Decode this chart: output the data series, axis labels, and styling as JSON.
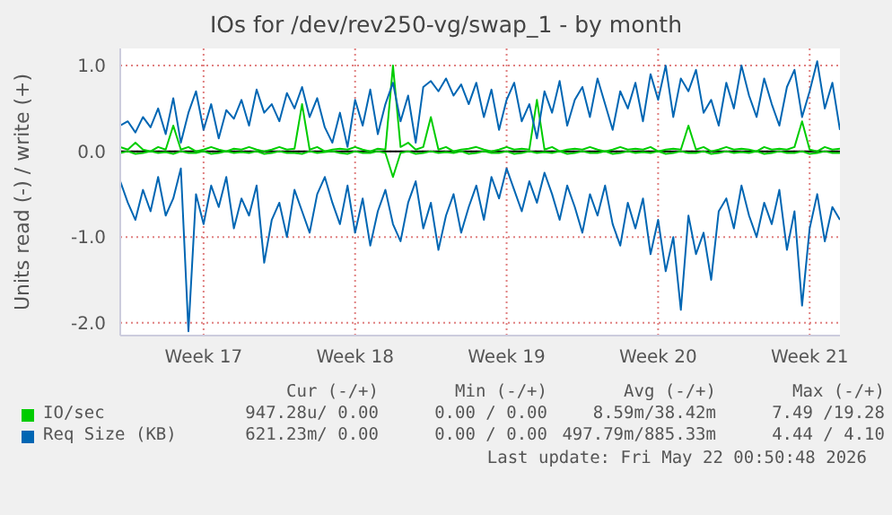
{
  "chart_data": {
    "type": "line",
    "title": "IOs for /dev/rev250-vg/swap_1 - by month",
    "ylabel": "Units read (-) / write (+)",
    "categories": [
      null,
      null,
      null,
      null,
      null,
      null,
      null,
      null,
      null,
      null,
      null,
      "Week 17",
      null,
      null,
      null,
      null,
      null,
      null,
      null,
      null,
      null,
      null,
      null,
      null,
      null,
      null,
      null,
      null,
      null,
      null,
      null,
      "Week 18",
      null,
      null,
      null,
      null,
      null,
      null,
      null,
      null,
      null,
      null,
      null,
      null,
      null,
      null,
      null,
      null,
      null,
      null,
      null,
      "Week 19",
      null,
      null,
      null,
      null,
      null,
      null,
      null,
      null,
      null,
      null,
      null,
      null,
      null,
      null,
      null,
      null,
      null,
      null,
      null,
      "Week 20",
      null,
      null,
      null,
      null,
      null,
      null,
      null,
      null,
      null,
      null,
      null,
      null,
      null,
      null,
      null,
      null,
      null,
      null,
      null,
      "Week 21",
      null,
      null,
      null,
      null
    ],
    "series": [
      {
        "name": "IO/sec",
        "color": "#00cc00",
        "values": [
          0.05,
          0.02,
          0.1,
          0.02,
          0.0,
          0.05,
          0.02,
          0.3,
          0.02,
          0.05,
          0.0,
          0.02,
          0.05,
          0.02,
          0.0,
          0.03,
          0.02,
          0.05,
          0.02,
          0.0,
          0.02,
          0.05,
          0.02,
          0.03,
          0.55,
          0.02,
          0.05,
          0.0,
          0.02,
          0.03,
          0.02,
          0.05,
          0.02,
          0.0,
          0.03,
          0.02,
          1.0,
          0.05,
          0.1,
          0.02,
          0.05,
          0.4,
          0.02,
          0.05,
          0.0,
          0.02,
          0.03,
          0.05,
          0.02,
          0.0,
          0.02,
          0.05,
          0.02,
          0.03,
          0.02,
          0.6,
          0.02,
          0.05,
          0.0,
          0.02,
          0.03,
          0.02,
          0.05,
          0.02,
          0.0,
          0.02,
          0.05,
          0.02,
          0.03,
          0.02,
          0.05,
          0.0,
          0.02,
          0.03,
          0.02,
          0.3,
          0.02,
          0.05,
          0.0,
          0.02,
          0.05,
          0.02,
          0.03,
          0.02,
          0.0,
          0.05,
          0.02,
          0.03,
          0.02,
          0.05,
          0.35,
          0.02,
          0.0,
          0.05,
          0.02,
          0.03
        ]
      },
      {
        "color": "#00cc00",
        "values": [
          -0.02,
          0.0,
          -0.03,
          -0.02,
          0.0,
          -0.02,
          -0.01,
          -0.03,
          0.0,
          -0.02,
          -0.02,
          0.0,
          -0.03,
          -0.02,
          0.0,
          -0.02,
          -0.01,
          -0.02,
          0.0,
          -0.03,
          -0.02,
          0.0,
          -0.02,
          -0.02,
          -0.03,
          0.0,
          -0.02,
          -0.01,
          0.0,
          -0.02,
          -0.03,
          0.0,
          -0.02,
          -0.02,
          0.0,
          -0.02,
          -0.3,
          -0.02,
          0.0,
          -0.03,
          -0.02,
          0.0,
          -0.02,
          -0.01,
          -0.02,
          0.0,
          -0.03,
          -0.02,
          0.0,
          -0.02,
          -0.02,
          0.0,
          -0.03,
          -0.02,
          0.0,
          -0.02,
          -0.01,
          -0.02,
          0.0,
          -0.03,
          -0.02,
          0.0,
          -0.02,
          -0.02,
          0.0,
          -0.03,
          -0.02,
          0.0,
          -0.02,
          -0.01,
          -0.02,
          0.0,
          -0.03,
          -0.02,
          0.0,
          -0.02,
          -0.02,
          0.0,
          -0.03,
          -0.02,
          0.0,
          -0.02,
          -0.01,
          -0.02,
          0.0,
          -0.03,
          -0.02,
          0.0,
          -0.02,
          -0.02,
          0.0,
          -0.03,
          -0.02,
          0.0,
          -0.02,
          -0.02
        ]
      },
      {
        "name": "Req Size (KB)",
        "color": "#0066b3",
        "values": [
          0.3,
          0.35,
          0.22,
          0.4,
          0.28,
          0.5,
          0.2,
          0.62,
          0.1,
          0.45,
          0.7,
          0.25,
          0.55,
          0.15,
          0.48,
          0.38,
          0.6,
          0.3,
          0.72,
          0.45,
          0.55,
          0.35,
          0.68,
          0.5,
          0.75,
          0.4,
          0.62,
          0.28,
          0.1,
          0.45,
          0.05,
          0.6,
          0.3,
          0.72,
          0.2,
          0.55,
          0.8,
          0.35,
          0.65,
          0.1,
          0.75,
          0.82,
          0.7,
          0.85,
          0.65,
          0.78,
          0.55,
          0.8,
          0.4,
          0.72,
          0.25,
          0.6,
          0.8,
          0.35,
          0.55,
          0.15,
          0.7,
          0.45,
          0.82,
          0.3,
          0.6,
          0.75,
          0.4,
          0.85,
          0.55,
          0.25,
          0.7,
          0.5,
          0.8,
          0.35,
          0.9,
          0.6,
          1.0,
          0.4,
          0.85,
          0.7,
          0.95,
          0.45,
          0.6,
          0.3,
          0.8,
          0.5,
          1.0,
          0.65,
          0.4,
          0.85,
          0.55,
          0.3,
          0.75,
          0.95,
          0.4,
          0.7,
          1.05,
          0.5,
          0.8,
          0.25
        ]
      },
      {
        "color": "#0066b3",
        "values": [
          -0.35,
          -0.6,
          -0.8,
          -0.45,
          -0.7,
          -0.3,
          -0.75,
          -0.55,
          -0.2,
          -2.1,
          -0.5,
          -0.85,
          -0.4,
          -0.65,
          -0.3,
          -0.9,
          -0.55,
          -0.75,
          -0.4,
          -1.3,
          -0.8,
          -0.6,
          -1.0,
          -0.45,
          -0.7,
          -0.95,
          -0.5,
          -0.3,
          -0.6,
          -0.85,
          -0.4,
          -0.95,
          -0.55,
          -1.1,
          -0.7,
          -0.45,
          -0.85,
          -1.05,
          -0.6,
          -0.35,
          -0.9,
          -0.6,
          -1.15,
          -0.75,
          -0.5,
          -0.95,
          -0.65,
          -0.4,
          -0.8,
          -0.3,
          -0.55,
          -0.2,
          -0.45,
          -0.7,
          -0.35,
          -0.6,
          -0.25,
          -0.5,
          -0.8,
          -0.4,
          -0.65,
          -0.95,
          -0.5,
          -0.75,
          -0.4,
          -0.85,
          -1.1,
          -0.6,
          -0.9,
          -0.55,
          -1.2,
          -0.8,
          -1.4,
          -1.0,
          -1.85,
          -0.75,
          -1.2,
          -0.95,
          -1.5,
          -0.7,
          -0.55,
          -0.9,
          -0.4,
          -0.75,
          -1.0,
          -0.6,
          -0.85,
          -0.45,
          -1.15,
          -0.7,
          -1.8,
          -0.9,
          -0.5,
          -1.05,
          -0.65,
          -0.8
        ]
      }
    ],
    "ylim": [
      -2.15,
      1.2
    ],
    "yticks": [
      {
        "value": -2,
        "label": "-2.0"
      },
      {
        "value": -1,
        "label": "-1.0"
      },
      {
        "value": 0,
        "label": "0.0"
      },
      {
        "value": 1,
        "label": "1.0"
      }
    ],
    "ref_lines": [
      {
        "axis": "y",
        "value": 0,
        "color": "#000000"
      }
    ],
    "grid": true,
    "legend": "bottom",
    "marker": "none",
    "line_style": "solid",
    "annotations": [
      "Cur (-/+)",
      "Min (-/+)",
      "Avg (-/+)",
      "Max (-/+)",
      "947.28u/ 0.00",
      "0.00 / 0.00",
      "8.59m/38.42m",
      "7.49 /19.28",
      "621.23m/ 0.00",
      "0.00 / 0.00",
      "497.79m/885.33m",
      "4.44 / 4.10",
      "Last update: Fri May 22 00:50:48 2026"
    ]
  }
}
